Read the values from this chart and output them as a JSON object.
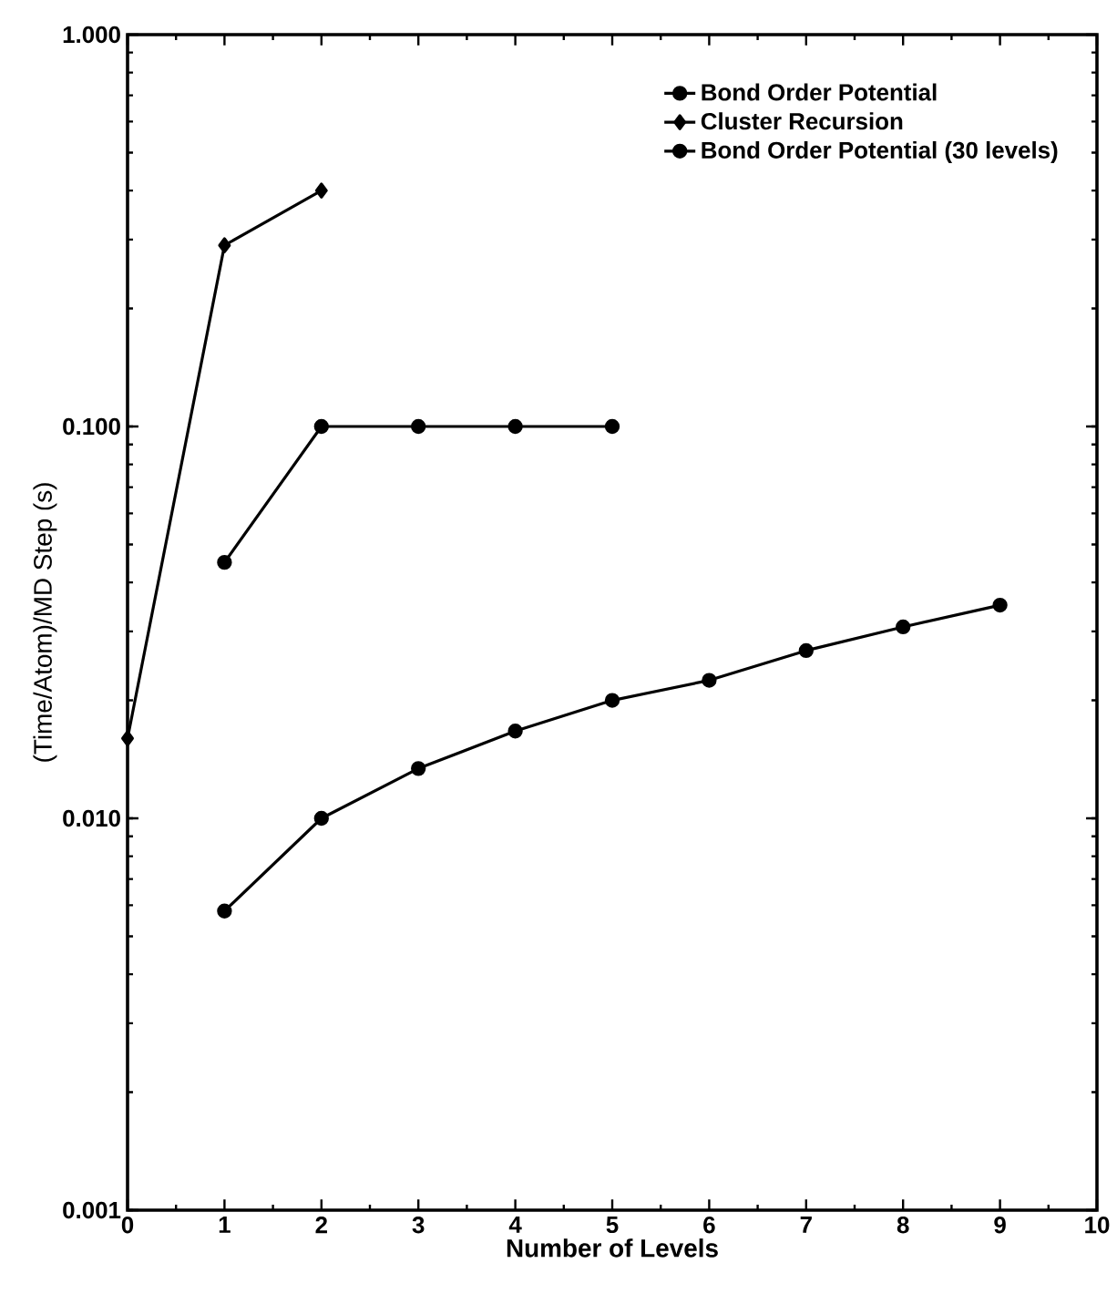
{
  "chart_data": {
    "type": "line",
    "xlabel": "Number of Levels",
    "ylabel": "(Time/Atom)/MD Step (s)",
    "log": "y",
    "xlim": [
      0,
      10
    ],
    "ylim": [
      0.001,
      1
    ],
    "xticks": [
      0,
      1,
      2,
      3,
      4,
      5,
      6,
      7,
      8,
      9,
      10
    ],
    "yticks": [
      {
        "value": 0.001,
        "label": "0.001"
      },
      {
        "value": 0.01,
        "label": "0.010"
      },
      {
        "value": 0.1,
        "label": "0.100"
      },
      {
        "value": 1,
        "label": "1.000"
      }
    ],
    "grid": false,
    "legend": "top right",
    "line_style": "solid",
    "series": [
      {
        "name": "Bond Order Potential",
        "color": "#000000",
        "marker": "circle",
        "x": [
          1,
          2,
          3,
          4,
          5,
          6,
          7,
          8,
          9
        ],
        "values": [
          0.0058,
          0.01,
          0.0134,
          0.0167,
          0.02,
          0.0225,
          0.0268,
          0.0308,
          0.035
        ]
      },
      {
        "name": "Cluster Recursion",
        "color": "#000000",
        "marker": "diamond",
        "x": [
          0,
          1,
          2
        ],
        "values": [
          0.016,
          0.29,
          0.4
        ]
      },
      {
        "name": "Bond Order Potential (30 levels)",
        "color": "#000000",
        "marker": "circle",
        "x": [
          1,
          2,
          3,
          4,
          5
        ],
        "values": [
          0.045,
          0.1,
          0.1,
          0.1,
          0.1
        ]
      }
    ]
  }
}
